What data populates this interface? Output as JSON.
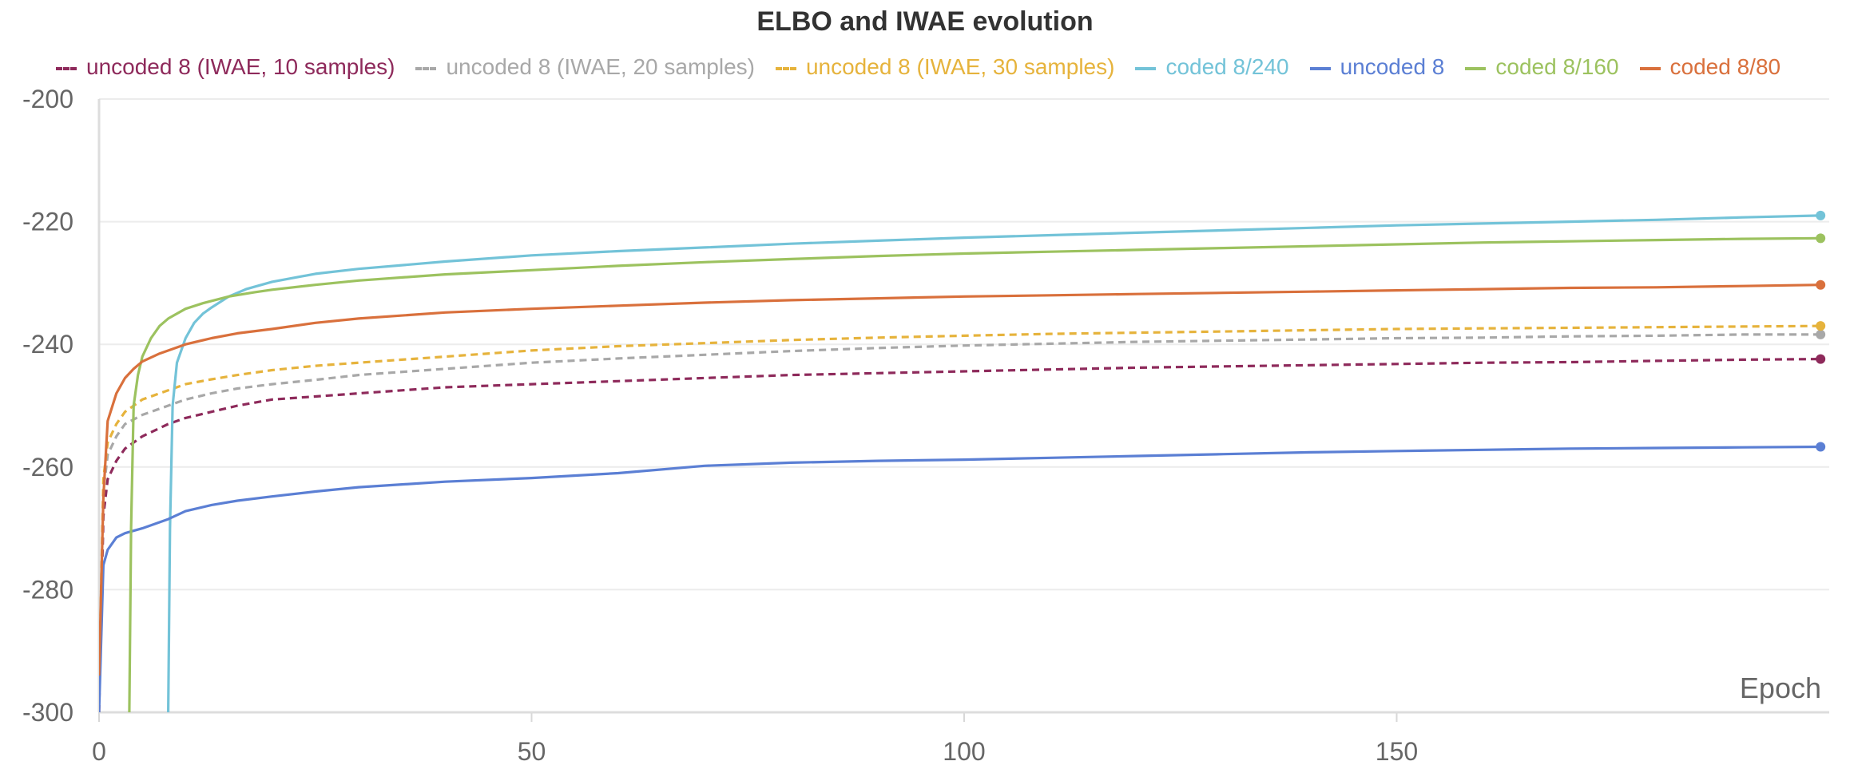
{
  "chart_data": {
    "type": "line",
    "title": "ELBO and IWAE evolution",
    "xlabel": "Epoch",
    "ylabel": "",
    "xlim": [
      0,
      200
    ],
    "ylim": [
      -300,
      -200
    ],
    "xticks": [
      0,
      50,
      100,
      150
    ],
    "yticks": [
      -200,
      -220,
      -240,
      -260,
      -280,
      -300
    ],
    "grid": true,
    "legend_position": "top",
    "series": [
      {
        "name": "uncoded 8 (IWAE, 10 samples)",
        "color": "#8e2a5b",
        "dashed": true,
        "end_marker": true,
        "x": [
          0,
          0.5,
          1,
          2,
          3,
          5,
          8,
          10,
          13,
          16,
          20,
          25,
          30,
          40,
          50,
          60,
          70,
          80,
          90,
          100,
          110,
          120,
          130,
          140,
          150,
          160,
          170,
          180,
          190,
          199
        ],
        "y": [
          -300,
          -268,
          -262,
          -259,
          -257,
          -255,
          -253,
          -252,
          -251,
          -250,
          -249,
          -248.5,
          -248,
          -247,
          -246.5,
          -246,
          -245.5,
          -245,
          -244.7,
          -244.4,
          -244.1,
          -243.8,
          -243.6,
          -243.4,
          -243.2,
          -243,
          -242.9,
          -242.7,
          -242.5,
          -242.4
        ]
      },
      {
        "name": "uncoded 8 (IWAE, 20 samples)",
        "color": "#a8a8a8",
        "dashed": true,
        "end_marker": true,
        "x": [
          0,
          0.5,
          1,
          2,
          3,
          5,
          8,
          10,
          13,
          16,
          20,
          25,
          30,
          40,
          50,
          60,
          70,
          80,
          90,
          100,
          110,
          120,
          130,
          140,
          150,
          160,
          170,
          180,
          190,
          199
        ],
        "y": [
          -298,
          -264,
          -258,
          -255,
          -253,
          -251.5,
          -250,
          -249,
          -248,
          -247.2,
          -246.5,
          -245.8,
          -245,
          -244,
          -243,
          -242.3,
          -241.7,
          -241.1,
          -240.6,
          -240.2,
          -239.9,
          -239.6,
          -239.4,
          -239.2,
          -239,
          -238.9,
          -238.7,
          -238.6,
          -238.4,
          -238.4
        ]
      },
      {
        "name": "uncoded 8 (IWAE, 30 samples)",
        "color": "#e6b33c",
        "dashed": true,
        "end_marker": true,
        "x": [
          0,
          0.5,
          1,
          2,
          3,
          5,
          8,
          10,
          13,
          16,
          20,
          25,
          30,
          40,
          50,
          60,
          70,
          80,
          90,
          100,
          110,
          120,
          130,
          140,
          150,
          160,
          170,
          180,
          190,
          199
        ],
        "y": [
          -296,
          -262,
          -256,
          -253,
          -251,
          -249,
          -247.5,
          -246.5,
          -245.7,
          -245,
          -244.2,
          -243.5,
          -243,
          -242,
          -241,
          -240.3,
          -239.8,
          -239.3,
          -238.9,
          -238.6,
          -238.3,
          -238.1,
          -237.9,
          -237.7,
          -237.5,
          -237.4,
          -237.3,
          -237.2,
          -237.1,
          -237
        ]
      },
      {
        "name": "coded 8/240",
        "color": "#73c3d8",
        "dashed": false,
        "end_marker": true,
        "x": [
          8,
          8.2,
          8.5,
          9,
          10,
          11,
          12,
          13,
          15,
          17,
          20,
          25,
          30,
          40,
          50,
          60,
          70,
          80,
          90,
          100,
          110,
          120,
          130,
          140,
          150,
          160,
          170,
          180,
          190,
          199
        ],
        "y": [
          -300,
          -270,
          -250,
          -243,
          -239,
          -236.5,
          -235,
          -234,
          -232.2,
          -231,
          -229.8,
          -228.5,
          -227.7,
          -226.5,
          -225.5,
          -224.8,
          -224.2,
          -223.6,
          -223.1,
          -222.6,
          -222.2,
          -221.8,
          -221.4,
          -221,
          -220.6,
          -220.3,
          -220,
          -219.7,
          -219.3,
          -219
        ]
      },
      {
        "name": "uncoded 8",
        "color": "#5b7fd4",
        "dashed": false,
        "end_marker": true,
        "x": [
          0,
          0.5,
          1,
          2,
          3,
          5,
          8,
          10,
          13,
          16,
          20,
          25,
          30,
          40,
          50,
          60,
          70,
          80,
          90,
          100,
          110,
          120,
          130,
          140,
          150,
          160,
          170,
          180,
          190,
          199
        ],
        "y": [
          -300,
          -276,
          -273.5,
          -271.5,
          -270.8,
          -270,
          -268.5,
          -267.2,
          -266.2,
          -265.5,
          -264.8,
          -264,
          -263.3,
          -262.4,
          -261.8,
          -261,
          -259.8,
          -259.3,
          -259,
          -258.8,
          -258.5,
          -258.2,
          -257.9,
          -257.6,
          -257.4,
          -257.2,
          -257,
          -256.9,
          -256.8,
          -256.7
        ]
      },
      {
        "name": "coded 8/160",
        "color": "#9cc25f",
        "dashed": false,
        "end_marker": true,
        "x": [
          3.5,
          3.7,
          4,
          4.5,
          5,
          6,
          7,
          8,
          10,
          12,
          15,
          18,
          20,
          25,
          30,
          40,
          50,
          60,
          70,
          80,
          90,
          100,
          110,
          120,
          130,
          140,
          150,
          160,
          170,
          180,
          190,
          199
        ],
        "y": [
          -300,
          -270,
          -250,
          -245,
          -242,
          -239,
          -237,
          -235.8,
          -234.2,
          -233.3,
          -232.2,
          -231.5,
          -231.1,
          -230.3,
          -229.6,
          -228.6,
          -227.9,
          -227.2,
          -226.6,
          -226.1,
          -225.6,
          -225.2,
          -224.9,
          -224.6,
          -224.3,
          -224,
          -223.7,
          -223.4,
          -223.2,
          -223,
          -222.8,
          -222.7
        ]
      },
      {
        "name": "coded 8/80",
        "color": "#d9703c",
        "dashed": false,
        "end_marker": true,
        "x": [
          0,
          0.5,
          1,
          2,
          3,
          4,
          5,
          7,
          10,
          13,
          16,
          20,
          25,
          30,
          40,
          50,
          60,
          70,
          80,
          90,
          100,
          110,
          120,
          130,
          140,
          150,
          160,
          170,
          180,
          190,
          199
        ],
        "y": [
          -294,
          -265,
          -252.5,
          -248,
          -245.5,
          -244,
          -242.8,
          -241.5,
          -240,
          -239,
          -238.2,
          -237.5,
          -236.5,
          -235.8,
          -234.8,
          -234.2,
          -233.7,
          -233.2,
          -232.8,
          -232.5,
          -232.2,
          -232,
          -231.8,
          -231.6,
          -231.4,
          -231.2,
          -231,
          -230.8,
          -230.7,
          -230.5,
          -230.3
        ]
      }
    ]
  }
}
